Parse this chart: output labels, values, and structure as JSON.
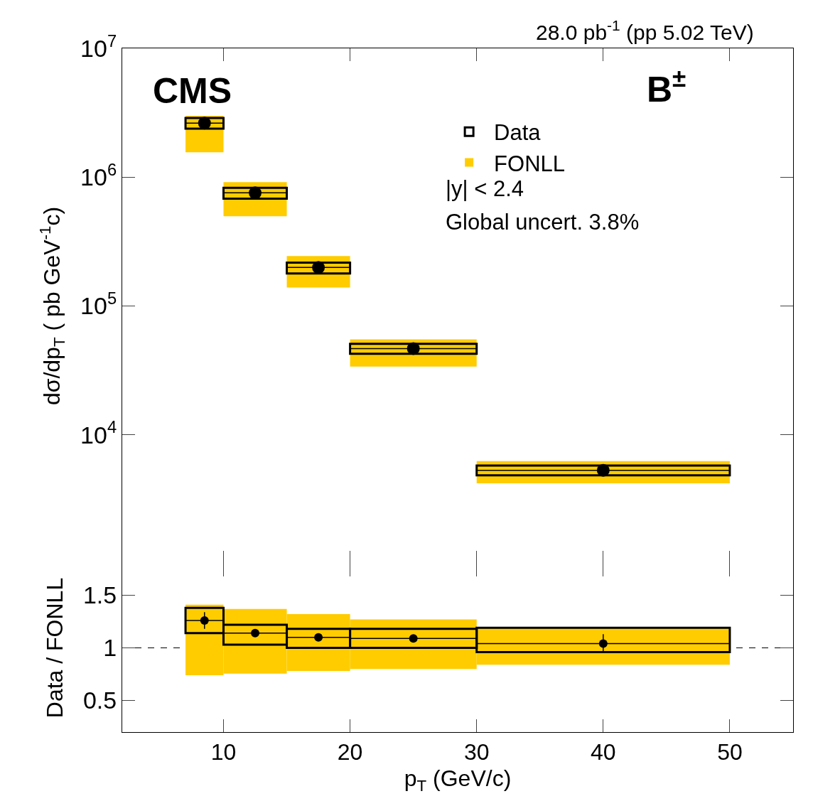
{
  "chart_data": [
    {
      "type": "histogram",
      "annotations": [
        "28.0 pb$^{-1}$ (pp 5.02 TeV)",
        "CMS",
        "B$^{±}$",
        "|y| < 2.4",
        "Global uncert. 3.8%"
      ],
      "ylabel": "dσ/dp$_{T}$ ( pb GeV$^{-1}$c)",
      "xlim": [
        2,
        55
      ],
      "xticks": [
        10,
        20,
        30,
        40,
        50
      ],
      "ylim": [
        1000,
        10000000
      ],
      "yticks": [
        {
          "value": 10000,
          "label": "10$^{4}$"
        },
        {
          "value": 100000,
          "label": "10$^{5}$"
        },
        {
          "value": 1000000,
          "label": "10$^{6}$"
        },
        {
          "value": 10000000,
          "label": "10$^{7}$"
        }
      ],
      "log": "y",
      "tick_labels": "y",
      "legend": "top right",
      "series": [
        {
          "name": "FONLL",
          "type": "histogram",
          "color": "#ffcc00",
          "bins": [
            7,
            10,
            15,
            20,
            30,
            50
          ],
          "base": [
            1560000,
            497000,
            139000,
            33900,
            4200
          ],
          "values": [
            1430000,
            418000,
            105000,
            21100,
            2050
          ]
        },
        {
          "name": "Data",
          "type": "histogram",
          "color": "#000000",
          "bins": [
            7,
            10,
            15,
            20,
            30,
            50
          ],
          "base": [
            2380000,
            682000,
            179000,
            42600,
            4840
          ],
          "values": [
            500000,
            144000,
            38000,
            8300,
            940
          ]
        },
        {
          "type": "scatter",
          "color": "#000000",
          "marker": "circle",
          "x": [
            8.5,
            12.5,
            17.5,
            25,
            40
          ],
          "values": [
            2630000,
            755000,
            199000,
            46700,
            5300
          ],
          "xerrors": [
            1.5,
            2.5,
            2.5,
            5,
            10
          ]
        }
      ]
    },
    {
      "type": "histogram",
      "xlabel": "p$_{T}$ (GeV/c)",
      "ylabel": "Data / FONLL",
      "xlim": [
        2,
        55
      ],
      "xticks": [
        10,
        20,
        30,
        40,
        50
      ],
      "ylim": [
        0.2,
        1.8
      ],
      "yticks": [
        0.5,
        1,
        1.5
      ],
      "ref_lines": [
        {
          "axis": "y",
          "value": 1,
          "color": "#000000",
          "line_style": "dashed"
        }
      ],
      "series": [
        {
          "type": "histogram",
          "color": "#ffcc00",
          "bins": [
            7,
            10,
            15,
            20,
            30,
            50
          ],
          "base": [
            0.74,
            0.755,
            0.78,
            0.8,
            0.84
          ],
          "values": [
            0.67,
            0.615,
            0.54,
            0.47,
            0.36
          ]
        },
        {
          "type": "histogram",
          "color": "#000000",
          "bins": [
            7,
            10,
            15,
            20,
            30,
            50
          ],
          "base": [
            1.14,
            1.03,
            1.0,
            1.0,
            0.96
          ],
          "values": [
            0.24,
            0.19,
            0.18,
            0.18,
            0.23
          ]
        },
        {
          "type": "scatter",
          "color": "#000000",
          "marker": "circle",
          "x": [
            8.5,
            12.5,
            17.5,
            25,
            40
          ],
          "values": [
            1.26,
            1.14,
            1.1,
            1.09,
            1.04
          ],
          "xerrors": [
            1.5,
            2.5,
            2.5,
            5,
            10
          ],
          "errors": [
            0.08,
            0.03,
            0.03,
            0.03,
            0.09
          ]
        }
      ]
    }
  ]
}
